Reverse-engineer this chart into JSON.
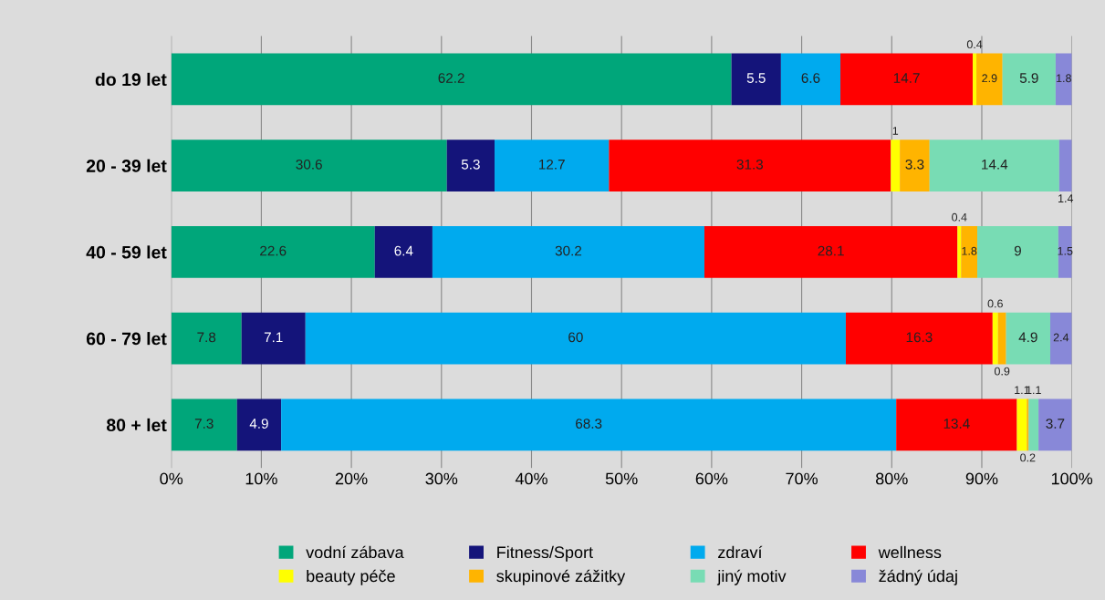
{
  "chart_data": {
    "type": "bar",
    "orientation": "horizontal",
    "stacked": true,
    "data_labels": true,
    "grid": "x",
    "legend": "bottom",
    "categories": [
      "do 19 let",
      "20 - 39 let",
      "40 - 59 let",
      "60 - 79 let",
      "80 + let"
    ],
    "xlim": [
      0,
      100
    ],
    "xticks": [
      {
        "value": 0,
        "label": "0%"
      },
      {
        "value": 10,
        "label": "10%"
      },
      {
        "value": 20,
        "label": "20%"
      },
      {
        "value": 30,
        "label": "30%"
      },
      {
        "value": 40,
        "label": "40%"
      },
      {
        "value": 50,
        "label": "50%"
      },
      {
        "value": 60,
        "label": "60%"
      },
      {
        "value": 70,
        "label": "70%"
      },
      {
        "value": 80,
        "label": "80%"
      },
      {
        "value": 90,
        "label": "90%"
      },
      {
        "value": 100,
        "label": "100%"
      }
    ],
    "series": [
      {
        "name": "vodní zábava",
        "color": "#00a67a",
        "values": [
          62.2,
          30.6,
          22.6,
          7.8,
          7.3
        ]
      },
      {
        "name": "Fitness/Sport",
        "color": "#14147a",
        "values": [
          5.5,
          5.3,
          6.4,
          7.1,
          4.9
        ]
      },
      {
        "name": "zdraví",
        "color": "#00aaee",
        "values": [
          6.6,
          12.7,
          30.2,
          60,
          68.3
        ]
      },
      {
        "name": "wellness",
        "color": "#ff0000",
        "values": [
          14.7,
          31.3,
          28.1,
          16.3,
          13.4
        ]
      },
      {
        "name": "beauty péče",
        "color": "#ffff00",
        "values": [
          0.4,
          1,
          0.4,
          0.6,
          1.1
        ]
      },
      {
        "name": "skupinové zážitky",
        "color": "#ffb400",
        "values": [
          2.9,
          3.3,
          1.8,
          0.9,
          0.2
        ]
      },
      {
        "name": "jiný motiv",
        "color": "#78dcb4",
        "values": [
          5.9,
          14.4,
          9,
          4.9,
          1.1
        ]
      },
      {
        "name": "žádný údaj",
        "color": "#8888d8",
        "values": [
          1.8,
          1.4,
          1.5,
          2.4,
          3.7
        ]
      }
    ]
  }
}
